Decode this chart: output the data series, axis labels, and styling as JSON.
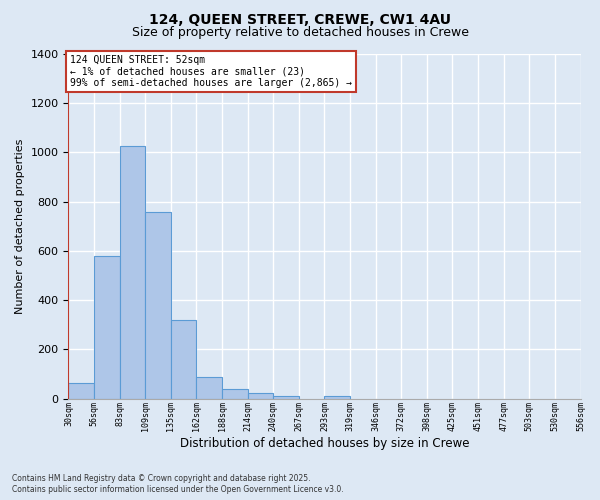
{
  "title1": "124, QUEEN STREET, CREWE, CW1 4AU",
  "title2": "Size of property relative to detached houses in Crewe",
  "xlabel": "Distribution of detached houses by size in Crewe",
  "ylabel": "Number of detached properties",
  "annotation_line1": "124 QUEEN STREET: 52sqm",
  "annotation_line2": "← 1% of detached houses are smaller (23)",
  "annotation_line3": "99% of semi-detached houses are larger (2,865) →",
  "bar_values": [
    65,
    580,
    1025,
    760,
    320,
    90,
    40,
    25,
    10,
    0,
    10,
    0,
    0,
    0,
    0,
    0,
    0,
    0,
    0,
    0
  ],
  "bin_labels": [
    "30sqm",
    "56sqm",
    "83sqm",
    "109sqm",
    "135sqm",
    "162sqm",
    "188sqm",
    "214sqm",
    "240sqm",
    "267sqm",
    "293sqm",
    "319sqm",
    "346sqm",
    "372sqm",
    "398sqm",
    "425sqm",
    "451sqm",
    "477sqm",
    "503sqm",
    "530sqm",
    "556sqm"
  ],
  "bar_color": "#aec6e8",
  "bar_edge_color": "#5b9bd5",
  "vline_color": "#c0392b",
  "background_color": "#dde8f4",
  "grid_color": "#ffffff",
  "ylim": [
    0,
    1400
  ],
  "yticks": [
    0,
    200,
    400,
    600,
    800,
    1000,
    1200,
    1400
  ],
  "footer_line1": "Contains HM Land Registry data © Crown copyright and database right 2025.",
  "footer_line2": "Contains public sector information licensed under the Open Government Licence v3.0."
}
